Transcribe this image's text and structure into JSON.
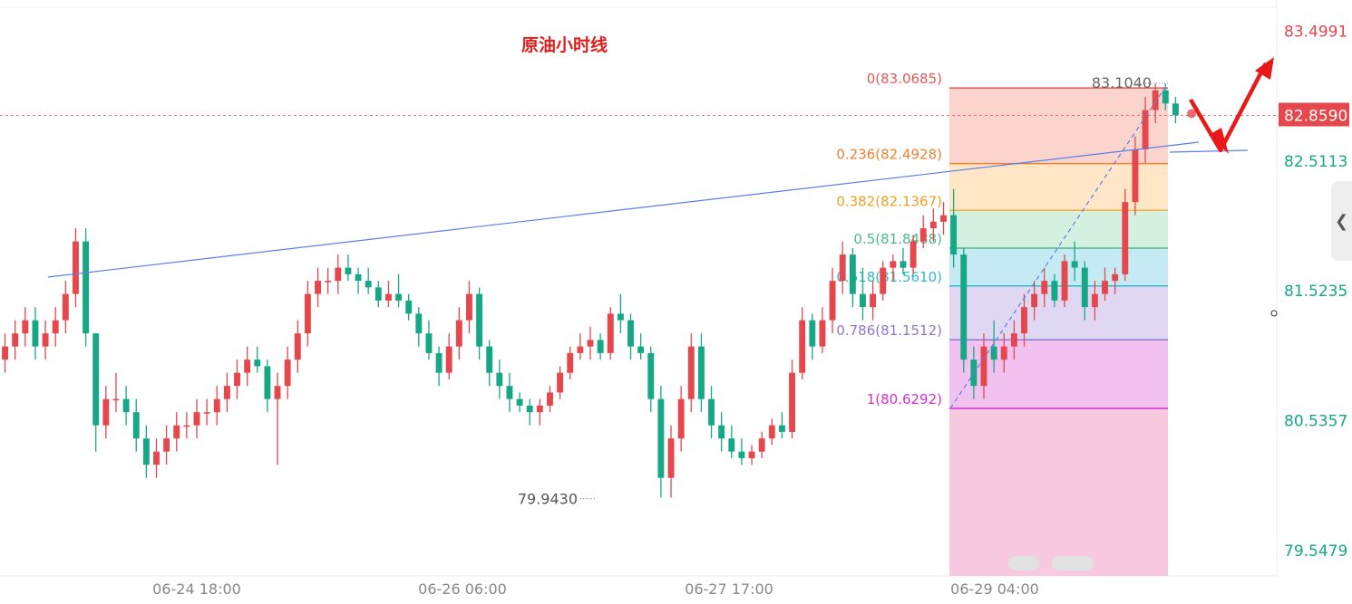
{
  "chart_data": {
    "type": "candlestick",
    "title": "原油小时线",
    "y_axis": {
      "ticks": [
        "83.4991",
        "82.5113",
        "81.5235",
        "80.5357",
        "79.5479"
      ],
      "ylim": [
        79.45,
        83.6
      ]
    },
    "x_axis": {
      "ticks": [
        "06-24 18:00",
        "06-26 06:00",
        "06-27 17:00",
        "06-29 04:00"
      ]
    },
    "last_price": "82.8590",
    "max_label": "83.1040",
    "min_label": "79.9430",
    "fib_levels": [
      {
        "label": "0(83.0685)",
        "value": 83.0685,
        "line": "#d95a5a",
        "fill": "#fbd0c8",
        "text": "#e05a5a"
      },
      {
        "label": "0.236(82.4928)",
        "value": 82.4928,
        "line": "#f08030",
        "fill": "#ffe3c0",
        "text": "#f08030"
      },
      {
        "label": "0.382(82.1367)",
        "value": 82.1367,
        "line": "#f0b040",
        "fill": "#cfeedd",
        "text": "#f0a020"
      },
      {
        "label": "0.5(81.8488)",
        "value": 81.8488,
        "line": "#4cbb8a",
        "fill": "#bfe8f2",
        "text": "#4cbb8a"
      },
      {
        "label": "0.618(81.5610)",
        "value": 81.561,
        "line": "#33b8cc",
        "fill": "#ddd4f2",
        "text": "#33b8cc"
      },
      {
        "label": "0.786(81.1512)",
        "value": 81.1512,
        "line": "#9077cc",
        "fill": "#f0bbee",
        "text": "#9077cc"
      },
      {
        "label": "1(80.6292)",
        "value": 80.6292,
        "line": "#d030d0",
        "fill": "#f6c4dc",
        "text": "#d030d0"
      }
    ],
    "candles": [
      [
        81.0,
        81.2,
        80.9,
        81.1
      ],
      [
        81.1,
        81.3,
        81.0,
        81.2
      ],
      [
        81.2,
        81.4,
        81.1,
        81.3
      ],
      [
        81.3,
        81.4,
        81.0,
        81.1
      ],
      [
        81.1,
        81.3,
        81.0,
        81.2
      ],
      [
        81.2,
        81.4,
        81.1,
        81.3
      ],
      [
        81.3,
        81.6,
        81.2,
        81.5
      ],
      [
        81.5,
        82.0,
        81.4,
        81.9
      ],
      [
        81.9,
        82.0,
        81.1,
        81.2
      ],
      [
        81.2,
        81.2,
        80.3,
        80.5
      ],
      [
        80.5,
        80.8,
        80.4,
        80.7
      ],
      [
        80.7,
        80.9,
        80.6,
        80.7
      ],
      [
        80.7,
        80.8,
        80.5,
        80.6
      ],
      [
        80.6,
        80.7,
        80.3,
        80.4
      ],
      [
        80.4,
        80.5,
        80.1,
        80.2
      ],
      [
        80.2,
        80.4,
        80.1,
        80.3
      ],
      [
        80.3,
        80.5,
        80.2,
        80.4
      ],
      [
        80.4,
        80.6,
        80.3,
        80.5
      ],
      [
        80.5,
        80.6,
        80.4,
        80.5
      ],
      [
        80.5,
        80.7,
        80.4,
        80.6
      ],
      [
        80.6,
        80.7,
        80.5,
        80.6
      ],
      [
        80.6,
        80.8,
        80.5,
        80.7
      ],
      [
        80.7,
        80.9,
        80.6,
        80.8
      ],
      [
        80.8,
        81.0,
        80.7,
        80.9
      ],
      [
        80.9,
        81.1,
        80.8,
        81.0
      ],
      [
        81.0,
        81.1,
        80.9,
        80.95
      ],
      [
        80.95,
        81.0,
        80.6,
        80.7
      ],
      [
        80.7,
        80.9,
        80.2,
        80.8
      ],
      [
        80.8,
        81.1,
        80.7,
        81.0
      ],
      [
        81.0,
        81.3,
        80.9,
        81.2
      ],
      [
        81.2,
        81.6,
        81.1,
        81.5
      ],
      [
        81.5,
        81.7,
        81.4,
        81.6
      ],
      [
        81.6,
        81.7,
        81.5,
        81.6
      ],
      [
        81.6,
        81.8,
        81.5,
        81.7
      ],
      [
        81.7,
        81.8,
        81.6,
        81.65
      ],
      [
        81.65,
        81.7,
        81.5,
        81.6
      ],
      [
        81.6,
        81.7,
        81.5,
        81.55
      ],
      [
        81.55,
        81.6,
        81.4,
        81.45
      ],
      [
        81.45,
        81.6,
        81.4,
        81.5
      ],
      [
        81.5,
        81.65,
        81.4,
        81.45
      ],
      [
        81.45,
        81.5,
        81.3,
        81.35
      ],
      [
        81.35,
        81.4,
        81.1,
        81.2
      ],
      [
        81.2,
        81.3,
        81.0,
        81.05
      ],
      [
        81.05,
        81.1,
        80.8,
        80.9
      ],
      [
        80.9,
        81.2,
        80.85,
        81.1
      ],
      [
        81.1,
        81.4,
        81.0,
        81.3
      ],
      [
        81.3,
        81.6,
        81.2,
        81.5
      ],
      [
        81.5,
        81.55,
        81.0,
        81.1
      ],
      [
        81.1,
        81.15,
        80.8,
        80.9
      ],
      [
        80.9,
        81.0,
        80.7,
        80.8
      ],
      [
        80.8,
        80.9,
        80.6,
        80.7
      ],
      [
        80.7,
        80.75,
        80.6,
        80.65
      ],
      [
        80.65,
        80.7,
        80.5,
        80.6
      ],
      [
        80.6,
        80.7,
        80.5,
        80.65
      ],
      [
        80.65,
        80.8,
        80.6,
        80.75
      ],
      [
        80.75,
        80.95,
        80.7,
        80.9
      ],
      [
        80.9,
        81.1,
        80.85,
        81.05
      ],
      [
        81.05,
        81.2,
        81.0,
        81.1
      ],
      [
        81.1,
        81.25,
        81.0,
        81.15
      ],
      [
        81.15,
        81.2,
        81.0,
        81.05
      ],
      [
        81.05,
        81.4,
        81.0,
        81.35
      ],
      [
        81.35,
        81.5,
        81.2,
        81.3
      ],
      [
        81.3,
        81.35,
        81.0,
        81.1
      ],
      [
        81.1,
        81.2,
        81.0,
        81.05
      ],
      [
        81.05,
        81.1,
        80.6,
        80.7
      ],
      [
        80.7,
        80.8,
        79.95,
        80.1
      ],
      [
        80.1,
        80.5,
        79.95,
        80.4
      ],
      [
        80.4,
        80.8,
        80.3,
        80.7
      ],
      [
        80.7,
        81.2,
        80.6,
        81.1
      ],
      [
        81.1,
        81.2,
        80.6,
        80.7
      ],
      [
        80.7,
        80.8,
        80.4,
        80.5
      ],
      [
        80.5,
        80.6,
        80.3,
        80.4
      ],
      [
        80.4,
        80.5,
        80.25,
        80.3
      ],
      [
        80.3,
        80.4,
        80.2,
        80.25
      ],
      [
        80.25,
        80.35,
        80.2,
        80.3
      ],
      [
        80.3,
        80.45,
        80.25,
        80.4
      ],
      [
        80.4,
        80.55,
        80.35,
        80.5
      ],
      [
        80.5,
        80.6,
        80.4,
        80.45
      ],
      [
        80.45,
        81.0,
        80.4,
        80.9
      ],
      [
        80.9,
        81.4,
        80.85,
        81.3
      ],
      [
        81.3,
        81.35,
        81.0,
        81.1
      ],
      [
        81.1,
        81.4,
        81.05,
        81.3
      ],
      [
        81.3,
        81.7,
        81.2,
        81.6
      ],
      [
        81.6,
        81.9,
        81.5,
        81.8
      ],
      [
        81.8,
        81.85,
        81.4,
        81.5
      ],
      [
        81.5,
        81.7,
        81.3,
        81.4
      ],
      [
        81.4,
        81.6,
        81.3,
        81.5
      ],
      [
        81.5,
        81.75,
        81.45,
        81.7
      ],
      [
        81.7,
        81.8,
        81.6,
        81.75
      ],
      [
        81.75,
        81.85,
        81.65,
        81.7
      ],
      [
        81.7,
        81.95,
        81.65,
        81.9
      ],
      [
        81.9,
        82.1,
        81.85,
        82.0
      ],
      [
        82.0,
        82.15,
        81.9,
        82.05
      ],
      [
        82.05,
        82.2,
        81.95,
        82.1
      ],
      [
        82.1,
        82.3,
        81.7,
        81.8
      ],
      [
        81.8,
        81.85,
        80.9,
        81.0
      ],
      [
        81.0,
        81.1,
        80.7,
        80.8
      ],
      [
        80.8,
        81.2,
        80.7,
        81.1
      ],
      [
        81.1,
        81.3,
        80.9,
        81.0
      ],
      [
        81.0,
        81.2,
        80.9,
        81.1
      ],
      [
        81.1,
        81.3,
        81.0,
        81.2
      ],
      [
        81.2,
        81.5,
        81.1,
        81.4
      ],
      [
        81.4,
        81.6,
        81.3,
        81.5
      ],
      [
        81.5,
        81.7,
        81.4,
        81.6
      ],
      [
        81.6,
        81.65,
        81.4,
        81.45
      ],
      [
        81.45,
        81.8,
        81.4,
        81.75
      ],
      [
        81.75,
        81.9,
        81.6,
        81.7
      ],
      [
        81.7,
        81.75,
        81.3,
        81.4
      ],
      [
        81.4,
        81.6,
        81.3,
        81.5
      ],
      [
        81.5,
        81.7,
        81.45,
        81.6
      ],
      [
        81.6,
        81.7,
        81.5,
        81.65
      ],
      [
        81.65,
        82.3,
        81.6,
        82.2
      ],
      [
        82.2,
        82.7,
        82.1,
        82.6
      ],
      [
        82.6,
        83.0,
        82.5,
        82.9
      ],
      [
        82.9,
        83.1,
        82.8,
        83.05
      ],
      [
        83.05,
        83.1,
        82.9,
        82.95
      ],
      [
        82.95,
        83.0,
        82.8,
        82.86
      ]
    ]
  },
  "colors": {
    "up": "#e5474d",
    "down": "#16a886",
    "trendline": "#5b7fe6",
    "arrow": "#e81919"
  },
  "collapse_icon": "chevron-left-icon"
}
